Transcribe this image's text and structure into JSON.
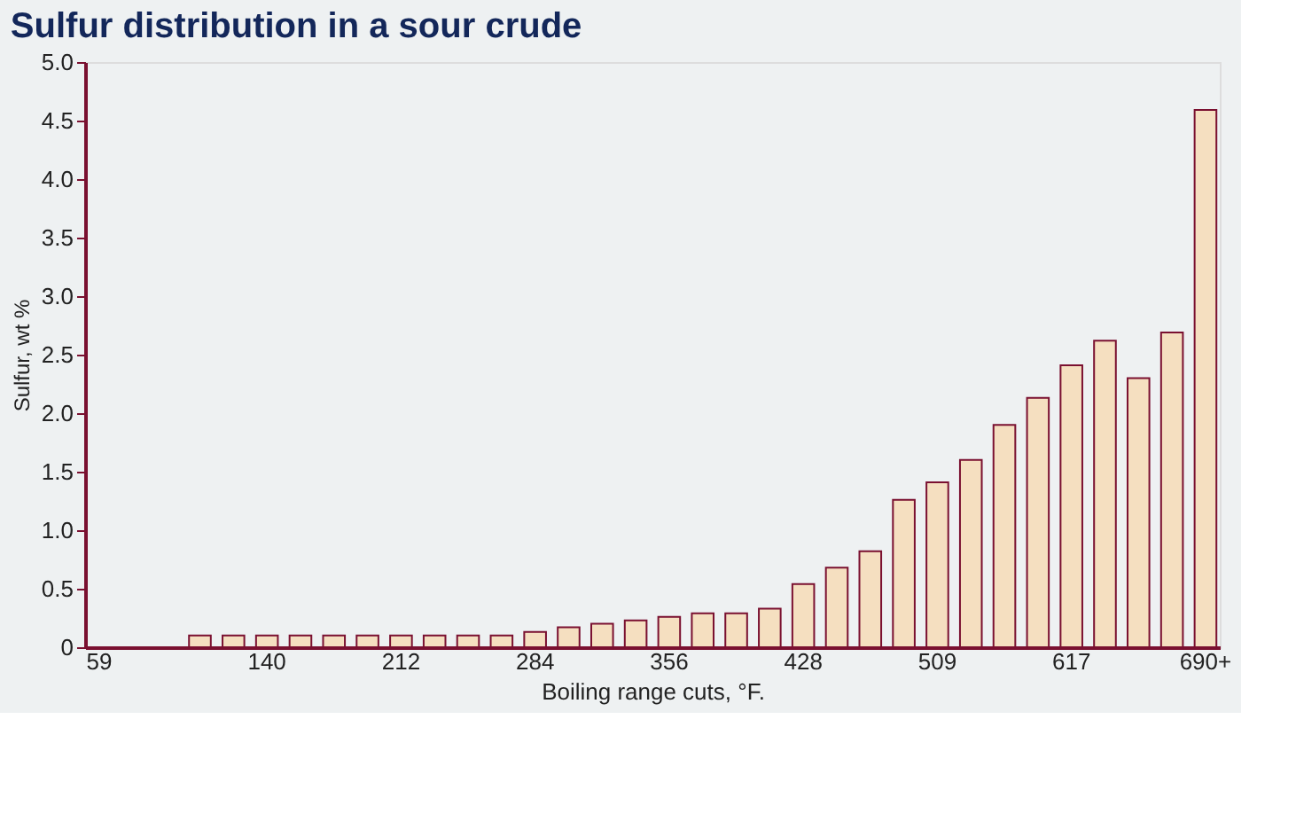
{
  "chart_data": {
    "type": "bar",
    "title": "Sulfur distribution in a sour crude",
    "xlabel": "Boiling range cuts, °F.",
    "ylabel": "Sulfur, wt %",
    "categories": [
      "59",
      null,
      null,
      null,
      null,
      "140",
      null,
      null,
      null,
      "212",
      null,
      null,
      null,
      "284",
      null,
      null,
      null,
      "356",
      null,
      null,
      null,
      "428",
      null,
      null,
      null,
      "509",
      null,
      null,
      null,
      "617",
      null,
      null,
      null,
      "690+"
    ],
    "values": [
      null,
      null,
      null,
      0.1,
      0.1,
      0.1,
      0.1,
      0.1,
      0.1,
      0.1,
      0.1,
      0.1,
      0.1,
      0.13,
      0.17,
      0.2,
      0.23,
      0.26,
      0.29,
      0.29,
      0.33,
      0.54,
      0.68,
      0.82,
      1.26,
      1.41,
      1.6,
      1.9,
      2.13,
      2.41,
      2.62,
      2.3,
      2.69,
      4.59
    ],
    "color": "#f5dfc0",
    "ylim": [
      0,
      5.0
    ],
    "yticks": [
      0,
      0.5,
      {
        "value": 1,
        "label": "1.0"
      },
      1.5,
      {
        "value": 2,
        "label": "2.0"
      },
      2.5,
      {
        "value": 3,
        "label": "3.0"
      },
      3.5,
      {
        "value": 4,
        "label": "4.0"
      },
      4.5,
      {
        "value": 5,
        "label": "5.0"
      }
    ],
    "grid": false
  }
}
